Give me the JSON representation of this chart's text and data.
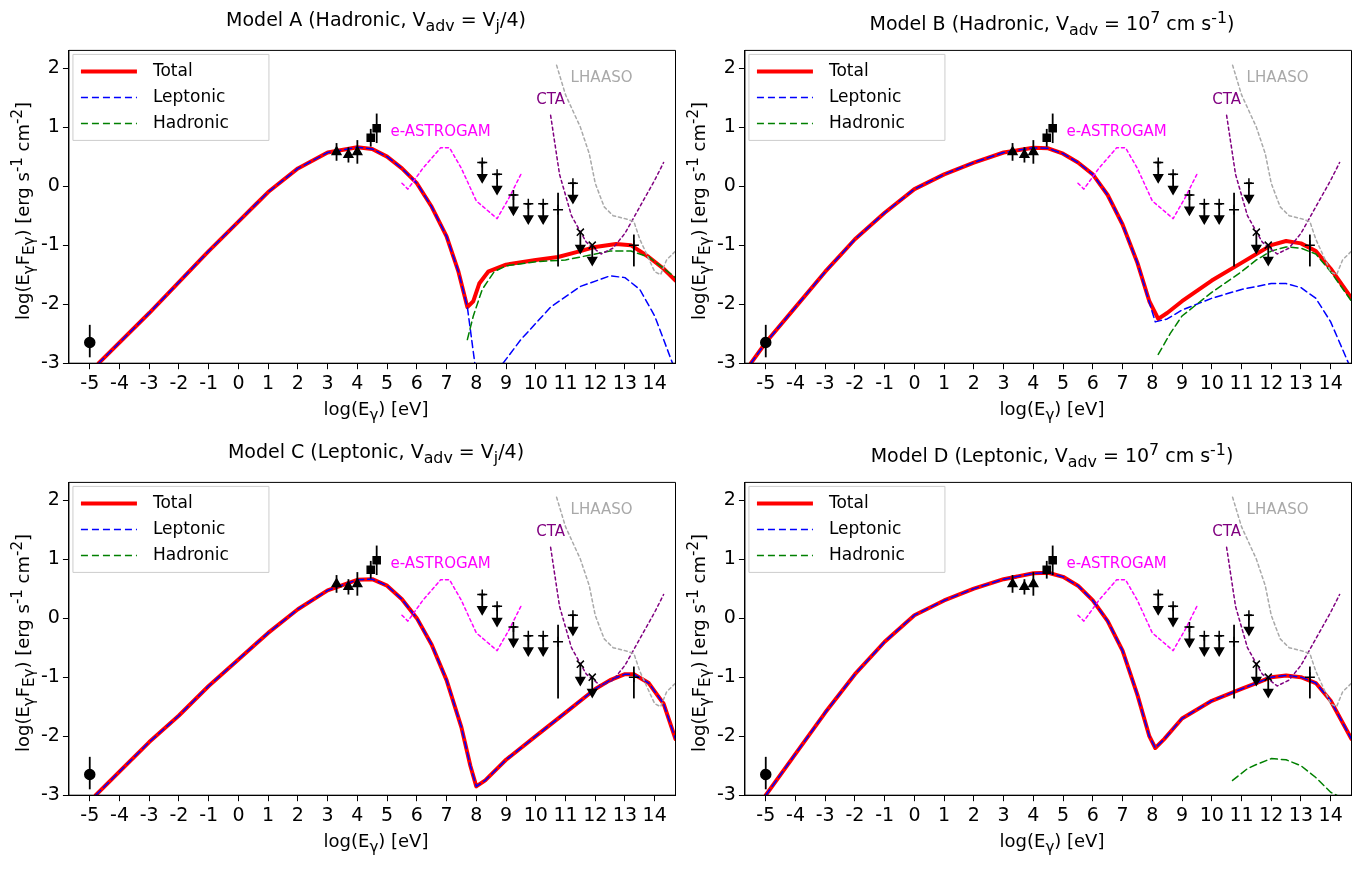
{
  "chart_data": [
    {
      "type": "line",
      "title": "Model A (Hadronic, V$_{adv}$ = V$_{j}$/4)",
      "xlabel": "log(E$_{γ}$) [eV]",
      "ylabel": "log(E$_{γ}$F$_{Eγ}$) [erg s$^{-1}$ cm$^{-2}$]",
      "xlim": [
        -5.7,
        14.7
      ],
      "ylim": [
        -3,
        2.3
      ],
      "xticks": [
        -5,
        -4,
        -3,
        -2,
        -1,
        0,
        1,
        2,
        3,
        4,
        5,
        6,
        7,
        8,
        9,
        10,
        11,
        12,
        13,
        14
      ],
      "yticks": [
        -3,
        -2,
        -1,
        0,
        1,
        2
      ],
      "legend": "top left",
      "grid": false,
      "series": [
        {
          "name": "Total",
          "type": "line",
          "color": "#ff0000",
          "line_style": "solid",
          "x": [
            -4.7,
            -3,
            -1,
            0,
            1,
            2,
            3,
            4,
            4.5,
            5,
            5.5,
            6,
            6.5,
            7,
            7.4,
            7.7,
            7.9,
            8.1,
            8.4,
            9,
            10,
            10.75,
            11.5,
            12,
            12.7,
            13.2,
            13.8,
            14.3,
            14.7
          ],
          "values": [
            -3,
            -2.15,
            -1.1,
            -0.6,
            -0.1,
            0.3,
            0.57,
            0.66,
            0.63,
            0.5,
            0.3,
            0.05,
            -0.35,
            -0.85,
            -1.45,
            -2.05,
            -1.95,
            -1.65,
            -1.45,
            -1.33,
            -1.25,
            -1.2,
            -1.1,
            -1.03,
            -0.98,
            -1,
            -1.2,
            -1.4,
            -1.6
          ]
        },
        {
          "name": "Leptonic",
          "type": "line",
          "color": "#0000ff",
          "line_style": "dashed",
          "x": [
            -4.7,
            -3,
            -1,
            0,
            1,
            2,
            3,
            4,
            4.5,
            5,
            5.5,
            6,
            6.5,
            7,
            7.4,
            7.7,
            7.95,
            8.5,
            8.9,
            9.5,
            10.5,
            11.5,
            12.5,
            13,
            13.5,
            14,
            14.6
          ],
          "values": [
            -3,
            -2.15,
            -1.1,
            -0.6,
            -0.1,
            0.3,
            0.57,
            0.66,
            0.63,
            0.5,
            0.3,
            0.05,
            -0.35,
            -0.85,
            -1.45,
            -2.05,
            -3,
            null,
            -3,
            -2.6,
            -2.05,
            -1.7,
            -1.52,
            -1.55,
            -1.75,
            -2.2,
            -3
          ]
        },
        {
          "name": "Hadronic",
          "type": "line",
          "color": "#008000",
          "line_style": "dashed",
          "x": [
            7.7,
            7.9,
            8.2,
            8.6,
            9,
            10,
            11,
            11.5,
            12.5,
            13.2,
            13.8,
            14.7
          ],
          "values": [
            -2.6,
            -2.2,
            -1.75,
            -1.45,
            -1.35,
            -1.28,
            -1.25,
            -1.2,
            -1.1,
            -1.1,
            -1.2,
            -1.55
          ]
        },
        {
          "name": "e-ASTROGAM",
          "type": "line",
          "color": "#ff00ff",
          "line_style": "dotted",
          "x": [
            5.5,
            5.7,
            6.2,
            6.8,
            7.1,
            7.5,
            8,
            8.7,
            9.1,
            9.5
          ],
          "values": [
            0.05,
            -0.05,
            0.3,
            0.65,
            0.65,
            0.3,
            -0.25,
            -0.55,
            -0.2,
            0.2
          ]
        },
        {
          "name": "CTA",
          "type": "line",
          "color": "#800080",
          "line_style": "dotted",
          "x": [
            10.5,
            10.8,
            11.2,
            11.7,
            12.2,
            12.6,
            13,
            13.5,
            14,
            14.3
          ],
          "values": [
            1.2,
            0.2,
            -0.5,
            -0.95,
            -1.15,
            -1.05,
            -0.8,
            -0.35,
            0.1,
            0.4
          ]
        },
        {
          "name": "LHAASO",
          "type": "line",
          "color": "#a9a9a9",
          "line_style": "dotted",
          "x": [
            10.7,
            11,
            11.5,
            11.8,
            12,
            12.3,
            12.6,
            13,
            13.3,
            13.5,
            14,
            14.2,
            14.4,
            14.7
          ],
          "values": [
            2.05,
            1.55,
            1,
            0.55,
            0.05,
            -0.35,
            -0.5,
            -0.55,
            -0.6,
            -0.9,
            -1.45,
            -1.5,
            -1.25,
            -1.1
          ]
        },
        {
          "type": "scatter",
          "color": "#000000",
          "marker": "circle",
          "x": [
            -5
          ],
          "values": [
            -2.65
          ],
          "errors": [
            [
              -2.9,
              -2.35
            ]
          ]
        },
        {
          "type": "scatter",
          "color": "#000000",
          "marker": "triangle",
          "x": [
            3.3,
            3.7,
            4
          ],
          "values": [
            0.58,
            0.53,
            0.58
          ],
          "errors": [
            0.15,
            0.13,
            0.2
          ]
        },
        {
          "type": "scatter",
          "color": "#000000",
          "marker": "square",
          "x": [
            4.45,
            4.65
          ],
          "values": [
            0.82,
            0.98
          ],
          "errors": [
            0.15,
            0.25
          ]
        },
        {
          "type": "scatter",
          "color": "#000000",
          "marker": "cross",
          "x": [
            8.2,
            8.7,
            9.25,
            9.75,
            10.25,
            11.25
          ],
          "values": [
            0.4,
            0.2,
            -0.15,
            -0.3,
            -0.3,
            0.05
          ],
          "errors": [
            [
              0.15,
              0.4
            ],
            [
              -0.05,
              0.2
            ],
            [
              -0.4,
              -0.15
            ],
            [
              -0.55,
              -0.3
            ],
            [
              -0.55,
              -0.3
            ],
            [
              -0.2,
              0.05
            ]
          ],
          "xerrors": [
            0.1,
            0.1,
            0.1,
            0.1,
            0.1,
            0.1
          ]
        },
        {
          "type": "scatter",
          "color": "#000000",
          "marker": "cross",
          "x": [
            11.5,
            11.9
          ],
          "values": [
            -0.78,
            -1
          ],
          "errors": [
            [
              -1.05,
              -0.78
            ],
            [
              -1.25,
              -1
            ]
          ]
        },
        {
          "type": "scatter",
          "color": "#000000",
          "marker": "triangle",
          "x": [
            8.2,
            8.7,
            9.25,
            9.75,
            10.25,
            11.25,
            11.5,
            11.9
          ],
          "values": [
            0.15,
            -0.05,
            -0.4,
            -0.55,
            -0.55,
            -0.2,
            -1.05,
            -1.25
          ]
        },
        {
          "type": "scatter",
          "color": "#000000",
          "marker": "cross",
          "x": [
            10.75,
            13.3
          ],
          "values": [
            -0.4,
            -1
          ],
          "errors": [
            [
              -1.36,
              -0.11
            ],
            [
              -1.36,
              -0.82
            ]
          ]
        }
      ]
    },
    {
      "type": "line",
      "title": "Model B (Hadronic, V$_{adv}$ = 10$^{7}$  cm s$^{-1}$)",
      "xlabel": "log(E$_{γ}$) [eV]",
      "ylabel": "log(E$_{γ}$F$_{Eγ}$) [erg s$^{-1}$ cm$^{-2}$]",
      "xlim": [
        -5.7,
        14.7
      ],
      "ylim": [
        -3,
        2.3
      ],
      "xticks": [
        -5,
        -4,
        -3,
        -2,
        -1,
        0,
        1,
        2,
        3,
        4,
        5,
        6,
        7,
        8,
        9,
        10,
        11,
        12,
        13,
        14
      ],
      "yticks": [
        -3,
        -2,
        -1,
        0,
        1,
        2
      ],
      "legend": "top left",
      "grid": false,
      "series": [
        {
          "name": "Total",
          "type": "line",
          "color": "#ff0000",
          "line_style": "solid",
          "x": [
            -5.5,
            -5,
            -4,
            -3,
            -2,
            -1,
            0,
            1,
            2,
            3,
            4,
            4.5,
            5,
            5.5,
            6,
            6.5,
            7,
            7.5,
            7.9,
            8.2,
            8.5,
            9,
            10,
            11,
            11.5,
            12,
            12.5,
            13,
            13.5,
            14,
            14.7
          ],
          "values": [
            -3,
            -2.65,
            -2.05,
            -1.45,
            -0.9,
            -0.45,
            -0.05,
            0.2,
            0.4,
            0.57,
            0.65,
            0.64,
            0.55,
            0.4,
            0.2,
            -0.15,
            -0.65,
            -1.3,
            -1.95,
            -2.25,
            -2.15,
            -1.95,
            -1.6,
            -1.3,
            -1.15,
            -1,
            -0.93,
            -0.97,
            -1.1,
            -1.4,
            -1.9
          ]
        },
        {
          "name": "Leptonic",
          "type": "line",
          "color": "#0000ff",
          "line_style": "dashed",
          "x": [
            -5.5,
            -5,
            -4,
            -3,
            -2,
            -1,
            0,
            1,
            2,
            3,
            4,
            4.5,
            5,
            5.5,
            6,
            6.5,
            7,
            7.5,
            8.1,
            8.5,
            9,
            10,
            11,
            12,
            12.5,
            13,
            13.5,
            14,
            14.6
          ],
          "values": [
            -3,
            -2.65,
            -2.05,
            -1.45,
            -0.9,
            -0.45,
            -0.05,
            0.2,
            0.4,
            0.57,
            0.65,
            0.64,
            0.55,
            0.4,
            0.2,
            -0.15,
            -0.65,
            -1.3,
            -2.3,
            -2.25,
            -2.1,
            -1.9,
            -1.75,
            -1.65,
            -1.65,
            -1.72,
            -1.9,
            -2.3,
            -3
          ]
        },
        {
          "name": "Hadronic",
          "type": "line",
          "color": "#008000",
          "line_style": "dashed",
          "x": [
            8.2,
            8.6,
            9,
            10,
            11,
            11.5,
            12,
            12.5,
            13,
            13.5,
            14,
            14.7
          ],
          "values": [
            -2.85,
            -2.5,
            -2.2,
            -1.8,
            -1.45,
            -1.25,
            -1.1,
            -1.03,
            -1.05,
            -1.15,
            -1.45,
            -1.95
          ]
        },
        {
          "name": "e-ASTROGAM",
          "type": "line",
          "color": "#ff00ff",
          "line_style": "dotted",
          "x": [
            5.5,
            5.7,
            6.2,
            6.8,
            7.1,
            7.5,
            8,
            8.7,
            9.1,
            9.5
          ],
          "values": [
            0.05,
            -0.05,
            0.3,
            0.65,
            0.65,
            0.3,
            -0.25,
            -0.55,
            -0.2,
            0.2
          ]
        },
        {
          "name": "CTA",
          "type": "line",
          "color": "#800080",
          "line_style": "dotted",
          "x": [
            10.5,
            10.8,
            11.2,
            11.7,
            12.2,
            12.6,
            13,
            13.5,
            14,
            14.3
          ],
          "values": [
            1.2,
            0.2,
            -0.5,
            -0.95,
            -1.15,
            -1.05,
            -0.8,
            -0.35,
            0.1,
            0.4
          ]
        },
        {
          "name": "LHAASO",
          "type": "line",
          "color": "#a9a9a9",
          "line_style": "dotted",
          "x": [
            10.7,
            11,
            11.5,
            11.8,
            12,
            12.3,
            12.6,
            13,
            13.3,
            13.5,
            14,
            14.2,
            14.4,
            14.7
          ],
          "values": [
            2.05,
            1.55,
            1,
            0.55,
            0.05,
            -0.35,
            -0.5,
            -0.55,
            -0.6,
            -0.9,
            -1.45,
            -1.5,
            -1.25,
            -1.1
          ]
        },
        {
          "type": "scatter",
          "color": "#000000",
          "marker": "circle",
          "x": [
            -5
          ],
          "values": [
            -2.65
          ],
          "errors": [
            [
              -2.9,
              -2.35
            ]
          ]
        },
        {
          "type": "scatter",
          "color": "#000000",
          "marker": "triangle",
          "x": [
            3.3,
            3.7,
            4
          ],
          "values": [
            0.58,
            0.53,
            0.58
          ],
          "errors": [
            0.15,
            0.13,
            0.2
          ]
        },
        {
          "type": "scatter",
          "color": "#000000",
          "marker": "square",
          "x": [
            4.45,
            4.65
          ],
          "values": [
            0.82,
            0.98
          ],
          "errors": [
            0.15,
            0.25
          ]
        },
        {
          "type": "scatter",
          "color": "#000000",
          "marker": "cross",
          "x": [
            8.2,
            8.7,
            9.25,
            9.75,
            10.25,
            11.25
          ],
          "values": [
            0.4,
            0.2,
            -0.15,
            -0.3,
            -0.3,
            0.05
          ],
          "errors": [
            [
              0.15,
              0.4
            ],
            [
              -0.05,
              0.2
            ],
            [
              -0.4,
              -0.15
            ],
            [
              -0.55,
              -0.3
            ],
            [
              -0.55,
              -0.3
            ],
            [
              -0.2,
              0.05
            ]
          ],
          "xerrors": [
            0.1,
            0.1,
            0.1,
            0.1,
            0.1,
            0.1
          ]
        },
        {
          "type": "scatter",
          "color": "#000000",
          "marker": "cross",
          "x": [
            11.5,
            11.9
          ],
          "values": [
            -0.78,
            -1
          ],
          "errors": [
            [
              -1.05,
              -0.78
            ],
            [
              -1.25,
              -1
            ]
          ]
        },
        {
          "type": "scatter",
          "color": "#000000",
          "marker": "triangle",
          "x": [
            8.2,
            8.7,
            9.25,
            9.75,
            10.25,
            11.25,
            11.5,
            11.9
          ],
          "values": [
            0.15,
            -0.05,
            -0.4,
            -0.55,
            -0.55,
            -0.2,
            -1.05,
            -1.25
          ]
        },
        {
          "type": "scatter",
          "color": "#000000",
          "marker": "cross",
          "x": [
            10.75,
            13.3
          ],
          "values": [
            -0.4,
            -1
          ],
          "errors": [
            [
              -1.36,
              -0.11
            ],
            [
              -1.36,
              -0.82
            ]
          ]
        }
      ]
    },
    {
      "type": "line",
      "title": "Model C (Leptonic, V$_{adv}$ = V$_{j}$/4)",
      "xlabel": "log(E$_{γ}$) [eV]",
      "ylabel": "log(E$_{γ}$F$_{Eγ}$) [erg s$^{-1}$ cm$^{-2}$]",
      "xlim": [
        -5.7,
        14.7
      ],
      "ylim": [
        -3,
        2.3
      ],
      "xticks": [
        -5,
        -4,
        -3,
        -2,
        -1,
        0,
        1,
        2,
        3,
        4,
        5,
        6,
        7,
        8,
        9,
        10,
        11,
        12,
        13,
        14
      ],
      "yticks": [
        -3,
        -2,
        -1,
        0,
        1,
        2
      ],
      "legend": "top left",
      "grid": false,
      "series": [
        {
          "name": "Total",
          "type": "line",
          "color": "#ff0000",
          "line_style": "solid",
          "x": [
            -4.8,
            -3,
            -2,
            -1,
            0,
            1,
            2,
            3,
            4,
            4.5,
            5,
            5.5,
            6,
            6.5,
            7,
            7.5,
            7.8,
            8,
            8.3,
            9,
            10,
            11,
            12,
            12.5,
            13,
            13.3,
            13.8,
            14.3,
            14.7
          ],
          "values": [
            -3,
            -2.1,
            -1.65,
            -1.15,
            -0.7,
            -0.25,
            0.15,
            0.47,
            0.65,
            0.66,
            0.55,
            0.32,
            0,
            -0.45,
            -1.05,
            -1.85,
            -2.5,
            -2.85,
            -2.75,
            -2.4,
            -2,
            -1.6,
            -1.2,
            -1.05,
            -0.95,
            -0.95,
            -1.1,
            -1.45,
            -2.05
          ]
        },
        {
          "name": "Leptonic",
          "type": "line",
          "color": "#0000ff",
          "line_style": "dashed",
          "x": [
            -4.8,
            -3,
            -2,
            -1,
            0,
            1,
            2,
            3,
            4,
            4.5,
            5,
            5.5,
            6,
            6.5,
            7,
            7.5,
            7.8,
            8,
            8.3,
            9,
            10,
            11,
            12,
            12.5,
            13,
            13.3,
            13.8,
            14.3,
            14.7
          ],
          "values": [
            -3,
            -2.1,
            -1.65,
            -1.15,
            -0.7,
            -0.25,
            0.15,
            0.47,
            0.65,
            0.66,
            0.55,
            0.32,
            0,
            -0.45,
            -1.05,
            -1.85,
            -2.5,
            -2.85,
            -2.75,
            -2.4,
            -2,
            -1.6,
            -1.2,
            -1.05,
            -0.95,
            -0.95,
            -1.1,
            -1.45,
            -2.05
          ]
        },
        {
          "name": "Hadronic",
          "type": "line",
          "color": "#008000",
          "line_style": "dashed"
        },
        {
          "name": "e-ASTROGAM",
          "type": "line",
          "color": "#ff00ff",
          "line_style": "dotted",
          "x": [
            5.5,
            5.7,
            6.2,
            6.8,
            7.1,
            7.5,
            8,
            8.7,
            9.1,
            9.5
          ],
          "values": [
            0.05,
            -0.05,
            0.3,
            0.65,
            0.65,
            0.3,
            -0.25,
            -0.55,
            -0.2,
            0.2
          ]
        },
        {
          "name": "CTA",
          "type": "line",
          "color": "#800080",
          "line_style": "dotted",
          "x": [
            10.5,
            10.8,
            11.2,
            11.7,
            12.2,
            12.6,
            13,
            13.5,
            14,
            14.3
          ],
          "values": [
            1.2,
            0.2,
            -0.5,
            -0.95,
            -1.15,
            -1.05,
            -0.8,
            -0.35,
            0.1,
            0.4
          ]
        },
        {
          "name": "LHAASO",
          "type": "line",
          "color": "#a9a9a9",
          "line_style": "dotted",
          "x": [
            10.7,
            11,
            11.5,
            11.8,
            12,
            12.3,
            12.6,
            13,
            13.3,
            13.5,
            14,
            14.2,
            14.4,
            14.7
          ],
          "values": [
            2.05,
            1.55,
            1,
            0.55,
            0.05,
            -0.35,
            -0.5,
            -0.55,
            -0.6,
            -0.9,
            -1.45,
            -1.5,
            -1.25,
            -1.1
          ]
        },
        {
          "type": "scatter",
          "color": "#000000",
          "marker": "circle",
          "x": [
            -5
          ],
          "values": [
            -2.65
          ],
          "errors": [
            [
              -2.9,
              -2.35
            ]
          ]
        },
        {
          "type": "scatter",
          "color": "#000000",
          "marker": "triangle",
          "x": [
            3.3,
            3.7,
            4
          ],
          "values": [
            0.58,
            0.53,
            0.58
          ],
          "errors": [
            0.15,
            0.13,
            0.2
          ]
        },
        {
          "type": "scatter",
          "color": "#000000",
          "marker": "square",
          "x": [
            4.45,
            4.65
          ],
          "values": [
            0.82,
            0.98
          ],
          "errors": [
            0.15,
            0.25
          ]
        },
        {
          "type": "scatter",
          "color": "#000000",
          "marker": "cross",
          "x": [
            8.2,
            8.7,
            9.25,
            9.75,
            10.25,
            11.25
          ],
          "values": [
            0.4,
            0.2,
            -0.15,
            -0.3,
            -0.3,
            0.05
          ],
          "errors": [
            [
              0.15,
              0.4
            ],
            [
              -0.05,
              0.2
            ],
            [
              -0.4,
              -0.15
            ],
            [
              -0.55,
              -0.3
            ],
            [
              -0.55,
              -0.3
            ],
            [
              -0.2,
              0.05
            ]
          ],
          "xerrors": [
            0.1,
            0.1,
            0.1,
            0.1,
            0.1,
            0.1
          ]
        },
        {
          "type": "scatter",
          "color": "#000000",
          "marker": "cross",
          "x": [
            11.5,
            11.9
          ],
          "values": [
            -0.78,
            -1
          ],
          "errors": [
            [
              -1.05,
              -0.78
            ],
            [
              -1.25,
              -1
            ]
          ]
        },
        {
          "type": "scatter",
          "color": "#000000",
          "marker": "triangle",
          "x": [
            8.2,
            8.7,
            9.25,
            9.75,
            10.25,
            11.25,
            11.5,
            11.9
          ],
          "values": [
            0.15,
            -0.05,
            -0.4,
            -0.55,
            -0.55,
            -0.2,
            -1.05,
            -1.25
          ]
        },
        {
          "type": "scatter",
          "color": "#000000",
          "marker": "cross",
          "x": [
            10.75,
            13.3
          ],
          "values": [
            -0.4,
            -1
          ],
          "errors": [
            [
              -1.36,
              -0.11
            ],
            [
              -1.36,
              -0.82
            ]
          ]
        }
      ]
    },
    {
      "type": "line",
      "title": "Model D (Leptonic, V$_{adv}$ = 10$^{7}$  cm s$^{-1}$)",
      "xlabel": "log(E$_{γ}$) [eV]",
      "ylabel": "log(E$_{γ}$F$_{Eγ}$) [erg s$^{-1}$ cm$^{-2}$]",
      "xlim": [
        -5.7,
        14.7
      ],
      "ylim": [
        -3,
        2.3
      ],
      "xticks": [
        -5,
        -4,
        -3,
        -2,
        -1,
        0,
        1,
        2,
        3,
        4,
        5,
        6,
        7,
        8,
        9,
        10,
        11,
        12,
        13,
        14
      ],
      "yticks": [
        -3,
        -2,
        -1,
        0,
        1,
        2
      ],
      "legend": "top left",
      "grid": false,
      "series": [
        {
          "name": "Total",
          "type": "line",
          "color": "#ff0000",
          "line_style": "solid",
          "x": [
            -5,
            -4,
            -3,
            -2,
            -1,
            0,
            1,
            2,
            3,
            4,
            4.5,
            5,
            5.5,
            6,
            6.5,
            7,
            7.5,
            7.9,
            8.1,
            8.4,
            9,
            10,
            11,
            11.5,
            12,
            12.5,
            13,
            13.5,
            14,
            14.7
          ],
          "values": [
            -3,
            -2.3,
            -1.6,
            -0.95,
            -0.4,
            0.05,
            0.3,
            0.5,
            0.66,
            0.76,
            0.77,
            0.7,
            0.55,
            0.3,
            -0.05,
            -0.55,
            -1.3,
            -2,
            -2.2,
            -2.05,
            -1.7,
            -1.4,
            -1.2,
            -1.1,
            -1,
            -0.97,
            -1,
            -1.1,
            -1.4,
            -2.05
          ]
        },
        {
          "name": "Leptonic",
          "type": "line",
          "color": "#0000ff",
          "line_style": "dashed",
          "x": [
            -5,
            -4,
            -3,
            -2,
            -1,
            0,
            1,
            2,
            3,
            4,
            4.5,
            5,
            5.5,
            6,
            6.5,
            7,
            7.5,
            7.9,
            8.1,
            8.4,
            9,
            10,
            11,
            11.5,
            12,
            12.5,
            13,
            13.5,
            14,
            14.7
          ],
          "values": [
            -3,
            -2.3,
            -1.6,
            -0.95,
            -0.4,
            0.05,
            0.3,
            0.5,
            0.66,
            0.76,
            0.77,
            0.7,
            0.55,
            0.3,
            -0.05,
            -0.55,
            -1.3,
            -2,
            -2.2,
            -2.05,
            -1.7,
            -1.4,
            -1.2,
            -1.1,
            -1,
            -0.97,
            -1,
            -1.1,
            -1.4,
            -2.05
          ]
        },
        {
          "name": "Hadronic",
          "type": "line",
          "color": "#008000",
          "line_style": "dashed",
          "x": [
            10.7,
            11.2,
            11.5,
            12,
            12.5,
            13,
            13.5,
            14,
            14.2
          ],
          "values": [
            -2.75,
            -2.55,
            -2.48,
            -2.38,
            -2.4,
            -2.5,
            -2.7,
            -2.95,
            -3
          ]
        },
        {
          "name": "e-ASTROGAM",
          "type": "line",
          "color": "#ff00ff",
          "line_style": "dotted",
          "x": [
            5.5,
            5.7,
            6.2,
            6.8,
            7.1,
            7.5,
            8,
            8.7,
            9.1,
            9.5
          ],
          "values": [
            0.05,
            -0.05,
            0.3,
            0.65,
            0.65,
            0.3,
            -0.25,
            -0.55,
            -0.2,
            0.2
          ]
        },
        {
          "name": "CTA",
          "type": "line",
          "color": "#800080",
          "line_style": "dotted",
          "x": [
            10.5,
            10.8,
            11.2,
            11.7,
            12.2,
            12.6,
            13,
            13.5,
            14,
            14.3
          ],
          "values": [
            1.2,
            0.2,
            -0.5,
            -0.95,
            -1.15,
            -1.05,
            -0.8,
            -0.35,
            0.1,
            0.4
          ]
        },
        {
          "name": "LHAASO",
          "type": "line",
          "color": "#a9a9a9",
          "line_style": "dotted",
          "x": [
            10.7,
            11,
            11.5,
            11.8,
            12,
            12.3,
            12.6,
            13,
            13.3,
            13.5,
            14,
            14.2,
            14.4,
            14.7
          ],
          "values": [
            2.05,
            1.55,
            1,
            0.55,
            0.05,
            -0.35,
            -0.5,
            -0.55,
            -0.6,
            -0.9,
            -1.45,
            -1.5,
            -1.25,
            -1.1
          ]
        },
        {
          "type": "scatter",
          "color": "#000000",
          "marker": "circle",
          "x": [
            -5
          ],
          "values": [
            -2.65
          ],
          "errors": [
            [
              -2.9,
              -2.35
            ]
          ]
        },
        {
          "type": "scatter",
          "color": "#000000",
          "marker": "triangle",
          "x": [
            3.3,
            3.7,
            4
          ],
          "values": [
            0.58,
            0.53,
            0.58
          ],
          "errors": [
            0.15,
            0.13,
            0.2
          ]
        },
        {
          "type": "scatter",
          "color": "#000000",
          "marker": "square",
          "x": [
            4.45,
            4.65
          ],
          "values": [
            0.82,
            0.98
          ],
          "errors": [
            0.15,
            0.25
          ]
        },
        {
          "type": "scatter",
          "color": "#000000",
          "marker": "cross",
          "x": [
            8.2,
            8.7,
            9.25,
            9.75,
            10.25,
            11.25
          ],
          "values": [
            0.4,
            0.2,
            -0.15,
            -0.3,
            -0.3,
            0.05
          ],
          "errors": [
            [
              0.15,
              0.4
            ],
            [
              -0.05,
              0.2
            ],
            [
              -0.4,
              -0.15
            ],
            [
              -0.55,
              -0.3
            ],
            [
              -0.55,
              -0.3
            ],
            [
              -0.2,
              0.05
            ]
          ],
          "xerrors": [
            0.1,
            0.1,
            0.1,
            0.1,
            0.1,
            0.1
          ]
        },
        {
          "type": "scatter",
          "color": "#000000",
          "marker": "cross",
          "x": [
            11.5,
            11.9
          ],
          "values": [
            -0.78,
            -1
          ],
          "errors": [
            [
              -1.05,
              -0.78
            ],
            [
              -1.25,
              -1
            ]
          ]
        },
        {
          "type": "scatter",
          "color": "#000000",
          "marker": "triangle",
          "x": [
            8.2,
            8.7,
            9.25,
            9.75,
            10.25,
            11.25,
            11.5,
            11.9
          ],
          "values": [
            0.15,
            -0.05,
            -0.4,
            -0.55,
            -0.55,
            -0.2,
            -1.05,
            -1.25
          ]
        },
        {
          "type": "scatter",
          "color": "#000000",
          "marker": "cross",
          "x": [
            10.75,
            13.3
          ],
          "values": [
            -0.4,
            -1
          ],
          "errors": [
            [
              -1.36,
              -0.11
            ],
            [
              -1.36,
              -0.82
            ]
          ]
        }
      ]
    }
  ]
}
